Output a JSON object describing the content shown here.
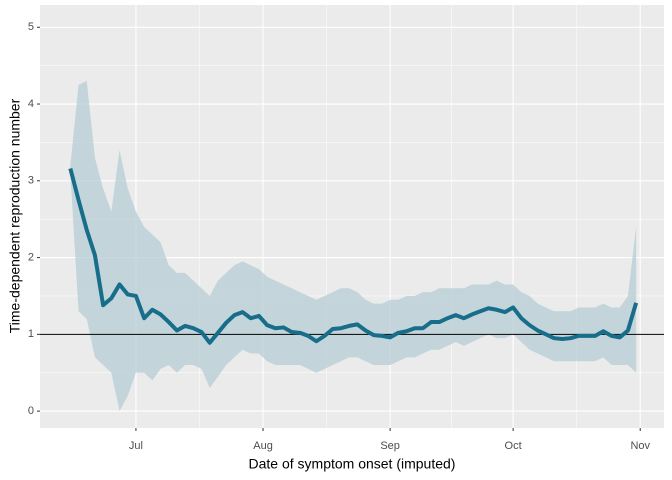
{
  "chart_data": {
    "type": "line",
    "x_label": "Date of symptom onset (imputed)",
    "y_label": "Time-dependent reproduction number",
    "x": [
      -16,
      -14,
      -12,
      -10,
      -8,
      -6,
      -4,
      -2,
      0,
      2,
      4,
      6,
      8,
      10,
      12,
      14,
      16,
      18,
      20,
      22,
      24,
      26,
      28,
      30,
      32,
      34,
      36,
      38,
      40,
      42,
      44,
      46,
      48,
      50,
      52,
      54,
      56,
      58,
      60,
      62,
      64,
      66,
      68,
      70,
      72,
      74,
      76,
      78,
      80,
      82,
      84,
      86,
      88,
      90,
      92,
      94,
      96,
      98,
      100,
      102,
      104,
      106,
      108,
      110,
      112,
      114,
      116,
      118,
      120,
      122
    ],
    "line": {
      "color": "#176d8a",
      "values": [
        3.16,
        2.75,
        2.36,
        2.03,
        1.38,
        1.47,
        1.65,
        1.52,
        1.5,
        1.21,
        1.32,
        1.26,
        1.16,
        1.05,
        1.11,
        1.08,
        1.03,
        0.89,
        1.02,
        1.15,
        1.25,
        1.29,
        1.21,
        1.24,
        1.12,
        1.08,
        1.09,
        1.03,
        1.02,
        0.98,
        0.91,
        0.98,
        1.07,
        1.08,
        1.11,
        1.13,
        1.05,
        0.99,
        0.98,
        0.96,
        1.02,
        1.04,
        1.08,
        1.08,
        1.16,
        1.16,
        1.21,
        1.25,
        1.21,
        1.26,
        1.3,
        1.34,
        1.32,
        1.29,
        1.35,
        1.21,
        1.12,
        1.05,
        1.0,
        0.95,
        0.94,
        0.95,
        0.98,
        0.98,
        0.98,
        1.04,
        0.98,
        0.96,
        1.05,
        1.41
      ]
    },
    "ribbon": {
      "color": "#b5cdd6",
      "upper": [
        3.2,
        4.25,
        4.3,
        3.3,
        2.9,
        2.6,
        3.4,
        2.9,
        2.6,
        2.4,
        2.3,
        2.2,
        1.9,
        1.8,
        1.8,
        1.7,
        1.6,
        1.5,
        1.7,
        1.8,
        1.9,
        1.95,
        1.9,
        1.85,
        1.75,
        1.7,
        1.65,
        1.6,
        1.55,
        1.5,
        1.45,
        1.5,
        1.55,
        1.6,
        1.6,
        1.55,
        1.45,
        1.4,
        1.4,
        1.45,
        1.45,
        1.5,
        1.5,
        1.55,
        1.55,
        1.6,
        1.6,
        1.6,
        1.6,
        1.65,
        1.65,
        1.65,
        1.7,
        1.65,
        1.65,
        1.55,
        1.5,
        1.4,
        1.35,
        1.3,
        1.3,
        1.3,
        1.35,
        1.35,
        1.35,
        1.4,
        1.35,
        1.35,
        1.5,
        2.4
      ],
      "lower": [
        3.1,
        1.3,
        1.2,
        0.7,
        0.6,
        0.5,
        0.0,
        0.2,
        0.5,
        0.5,
        0.4,
        0.55,
        0.6,
        0.5,
        0.6,
        0.6,
        0.55,
        0.3,
        0.45,
        0.6,
        0.7,
        0.8,
        0.75,
        0.75,
        0.65,
        0.6,
        0.6,
        0.6,
        0.6,
        0.55,
        0.5,
        0.55,
        0.6,
        0.65,
        0.7,
        0.7,
        0.65,
        0.6,
        0.6,
        0.6,
        0.65,
        0.7,
        0.7,
        0.75,
        0.8,
        0.8,
        0.85,
        0.9,
        0.85,
        0.9,
        0.95,
        1.0,
        0.95,
        0.95,
        1.0,
        0.9,
        0.8,
        0.75,
        0.7,
        0.65,
        0.65,
        0.65,
        0.65,
        0.65,
        0.65,
        0.7,
        0.6,
        0.6,
        0.6,
        0.5
      ]
    },
    "reference_line": 1,
    "xlim": [
      -23.4,
      128.8
    ],
    "xticks": [
      {
        "value": 0,
        "label": "Jul"
      },
      {
        "value": 31,
        "label": "Aug"
      },
      {
        "value": 62,
        "label": "Sep"
      },
      {
        "value": 92,
        "label": "Oct"
      },
      {
        "value": 123,
        "label": "Nov"
      }
    ],
    "ylim": [
      -0.22,
      5.29
    ],
    "yticks": [
      0,
      1,
      2,
      3,
      4,
      5
    ],
    "grid": true
  }
}
